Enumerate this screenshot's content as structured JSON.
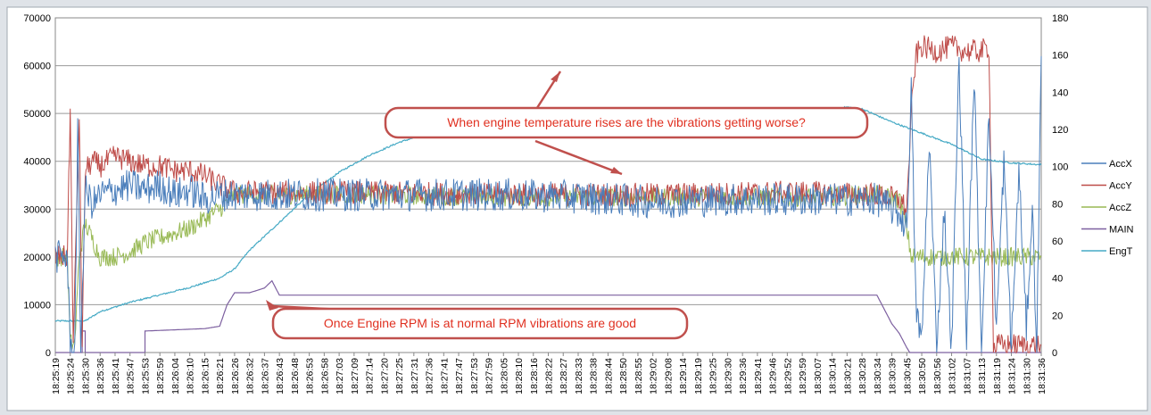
{
  "chart_data": {
    "type": "line",
    "title": "",
    "xlabel": "",
    "ylabel": "",
    "ylim": [
      0,
      70000
    ],
    "yticks": [
      0,
      10000,
      20000,
      30000,
      40000,
      50000,
      60000,
      70000
    ],
    "y2lim": [
      0,
      180
    ],
    "y2ticks": [
      0,
      20,
      40,
      60,
      80,
      100,
      120,
      140,
      160,
      180
    ],
    "grid": "horizontal",
    "legend_position": "right",
    "x_tick_labels": [
      "18:25:19",
      "18:25:24",
      "18:25:30",
      "18:25:36",
      "18:25:41",
      "18:25:47",
      "18:25:53",
      "18:25:59",
      "18:26:04",
      "18:26:10",
      "18:26:15",
      "18:26:21",
      "18:26:26",
      "18:26:32",
      "18:26:37",
      "18:26:43",
      "18:26:48",
      "18:26:53",
      "18:26:58",
      "18:27:03",
      "18:27:09",
      "18:27:14",
      "18:27:20",
      "18:27:25",
      "18:27:31",
      "18:27:36",
      "18:27:41",
      "18:27:47",
      "18:27:53",
      "18:27:59",
      "18:28:05",
      "18:28:10",
      "18:28:16",
      "18:28:22",
      "18:28:27",
      "18:28:33",
      "18:28:38",
      "18:28:44",
      "18:28:50",
      "18:28:55",
      "18:29:02",
      "18:29:08",
      "18:29:14",
      "18:29:19",
      "18:29:25",
      "18:29:30",
      "18:29:36",
      "18:29:41",
      "18:29:46",
      "18:29:52",
      "18:29:59",
      "18:30:07",
      "18:30:14",
      "18:30:21",
      "18:30:28",
      "18:30:34",
      "18:30:39",
      "18:30:45",
      "18:30:50",
      "18:30:56",
      "18:31:02",
      "18:31:07",
      "18:31:13",
      "18:31:19",
      "18:31:24",
      "18:31:30",
      "18:31:36"
    ],
    "x_range": [
      0,
      66
    ],
    "series": [
      {
        "name": "AccX",
        "color": "#4a7ebb",
        "axis": "primary",
        "points": [
          [
            0,
            20000
          ],
          [
            0.8,
            20000
          ],
          [
            1,
            1000
          ],
          [
            1.3,
            1000
          ],
          [
            1.5,
            46000
          ],
          [
            1.7,
            1000
          ],
          [
            2,
            34000
          ],
          [
            2.5,
            31000
          ],
          [
            3,
            33000
          ],
          [
            4,
            34000
          ],
          [
            5,
            35000
          ],
          [
            6,
            34000
          ],
          [
            7,
            35000
          ],
          [
            8,
            33000
          ],
          [
            9,
            34000
          ],
          [
            10,
            32000
          ],
          [
            11,
            33000
          ],
          [
            12,
            33000
          ],
          [
            20,
            33000
          ],
          [
            30,
            33000
          ],
          [
            35,
            32500
          ],
          [
            40,
            31500
          ],
          [
            45,
            32000
          ],
          [
            50,
            32000
          ],
          [
            55,
            32000
          ],
          [
            56.5,
            29000
          ],
          [
            57,
            26000
          ],
          [
            57.3,
            55000
          ],
          [
            57.6,
            10000
          ],
          [
            58,
            2000
          ],
          [
            58.5,
            45000
          ],
          [
            59,
            1000
          ],
          [
            59.5,
            30000
          ],
          [
            60,
            1000
          ],
          [
            60.5,
            62000
          ],
          [
            61,
            2000
          ],
          [
            61.5,
            58000
          ],
          [
            62,
            1000
          ],
          [
            62.5,
            50000
          ],
          [
            63,
            5000
          ],
          [
            63.5,
            40000
          ],
          [
            64,
            1000
          ],
          [
            64.5,
            38000
          ],
          [
            65,
            5000
          ],
          [
            65.4,
            30000
          ],
          [
            65.7,
            1000
          ],
          [
            66,
            62000
          ]
        ],
        "noise": 3500
      },
      {
        "name": "AccY",
        "color": "#be4b48",
        "axis": "primary",
        "points": [
          [
            0,
            20000
          ],
          [
            0.8,
            20000
          ],
          [
            1,
            51000
          ],
          [
            1.2,
            1000
          ],
          [
            1.6,
            50000
          ],
          [
            1.8,
            1000
          ],
          [
            2,
            38000
          ],
          [
            2.5,
            40000
          ],
          [
            3,
            39000
          ],
          [
            4,
            41000
          ],
          [
            5,
            40000
          ],
          [
            6,
            39000
          ],
          [
            7,
            39000
          ],
          [
            8,
            38000
          ],
          [
            9,
            38000
          ],
          [
            10,
            37000
          ],
          [
            11,
            35000
          ],
          [
            12,
            33500
          ],
          [
            20,
            33500
          ],
          [
            30,
            33000
          ],
          [
            40,
            33000
          ],
          [
            50,
            33500
          ],
          [
            55,
            33000
          ],
          [
            56.5,
            32000
          ],
          [
            57,
            30000
          ],
          [
            57.3,
            50000
          ],
          [
            57.6,
            62000
          ],
          [
            58,
            64000
          ],
          [
            59,
            63000
          ],
          [
            60,
            64000
          ],
          [
            61,
            63000
          ],
          [
            62,
            63000
          ],
          [
            62.5,
            64000
          ],
          [
            62.8,
            1000
          ],
          [
            63,
            1500
          ],
          [
            66,
            1500
          ]
        ],
        "noise": 2500
      },
      {
        "name": "AccZ",
        "color": "#98b954",
        "axis": "primary",
        "points": [
          [
            0,
            20000
          ],
          [
            0.8,
            20000
          ],
          [
            1,
            2000
          ],
          [
            1.3,
            2000
          ],
          [
            1.6,
            20000
          ],
          [
            2,
            27000
          ],
          [
            3,
            20000
          ],
          [
            4,
            20000
          ],
          [
            5,
            21000
          ],
          [
            6,
            23000
          ],
          [
            7,
            24000
          ],
          [
            8,
            25000
          ],
          [
            9,
            26000
          ],
          [
            10,
            28000
          ],
          [
            11,
            30000
          ],
          [
            12,
            33000
          ],
          [
            20,
            33000
          ],
          [
            30,
            32500
          ],
          [
            40,
            32500
          ],
          [
            50,
            32500
          ],
          [
            55,
            33000
          ],
          [
            56.5,
            32000
          ],
          [
            57,
            26000
          ],
          [
            57.3,
            20000
          ],
          [
            60,
            20000
          ],
          [
            61,
            20000
          ],
          [
            62,
            20000
          ],
          [
            66,
            20000
          ]
        ],
        "noise": 2000
      },
      {
        "name": "MAIN",
        "color": "#7d60a0",
        "axis": "primary",
        "points": [
          [
            0,
            0
          ],
          [
            1.8,
            0
          ],
          [
            1.8,
            4500
          ],
          [
            2,
            4500
          ],
          [
            2,
            0
          ],
          [
            6,
            0
          ],
          [
            6,
            4500
          ],
          [
            10,
            5000
          ],
          [
            11,
            5500
          ],
          [
            11.5,
            10000
          ],
          [
            12,
            12500
          ],
          [
            13,
            12500
          ],
          [
            14,
            13500
          ],
          [
            14.5,
            15000
          ],
          [
            15,
            12000
          ],
          [
            20,
            12000
          ],
          [
            30,
            12000
          ],
          [
            40,
            12000
          ],
          [
            50,
            12000
          ],
          [
            55,
            12000
          ],
          [
            55.5,
            9000
          ],
          [
            56,
            6000
          ],
          [
            56.5,
            4000
          ],
          [
            57,
            1000
          ],
          [
            57.2,
            0
          ],
          [
            66,
            0
          ]
        ],
        "noise": 0
      },
      {
        "name": "EngT",
        "color": "#46aac5",
        "axis": "secondary",
        "points": [
          [
            0,
            17
          ],
          [
            2,
            17
          ],
          [
            3,
            22
          ],
          [
            5,
            27
          ],
          [
            7,
            31
          ],
          [
            9,
            35
          ],
          [
            11,
            40
          ],
          [
            12,
            45
          ],
          [
            13,
            55
          ],
          [
            15,
            70
          ],
          [
            17,
            85
          ],
          [
            19,
            97
          ],
          [
            21,
            106
          ],
          [
            23,
            113
          ],
          [
            25,
            118
          ],
          [
            27,
            122
          ],
          [
            29,
            125
          ],
          [
            31,
            127
          ],
          [
            33,
            128
          ],
          [
            36,
            128.5
          ],
          [
            39,
            128.5
          ],
          [
            42,
            129
          ],
          [
            44,
            129
          ],
          [
            47,
            130
          ],
          [
            50,
            131
          ],
          [
            52,
            131
          ],
          [
            53,
            132
          ],
          [
            54,
            131
          ],
          [
            56,
            124
          ],
          [
            58,
            118
          ],
          [
            60,
            112
          ],
          [
            62,
            104
          ],
          [
            64,
            102
          ],
          [
            66,
            101
          ]
        ],
        "noise": 0.4
      }
    ],
    "annotations": [
      {
        "id": "temp-note",
        "text": "When engine temperature rises are the vibrations getting worse?"
      },
      {
        "id": "rpm-note",
        "text": "Once Engine RPM is at normal RPM vibrations are good"
      }
    ]
  }
}
